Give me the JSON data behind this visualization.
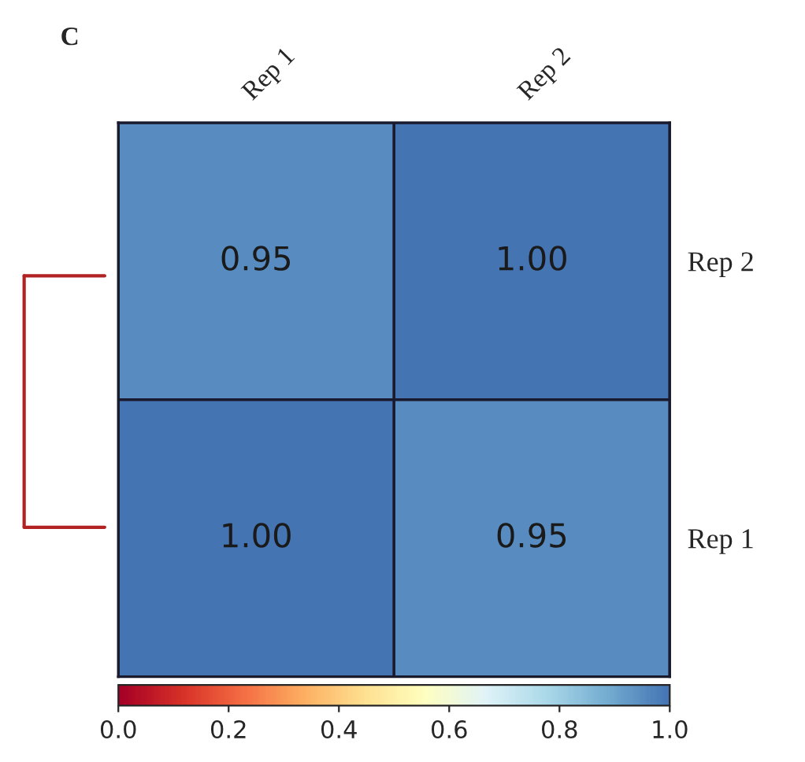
{
  "chart_data": {
    "type": "heatmap",
    "title": "C",
    "categories": [
      "Rep 1",
      "Rep 2"
    ],
    "y_categories": [
      "Rep 2",
      "Rep 1"
    ],
    "cells": [
      [
        0.95,
        1.0
      ],
      [
        1.0,
        0.95
      ]
    ],
    "cell_labels": [
      [
        "0.95",
        "1.00"
      ],
      [
        "1.00",
        "0.95"
      ]
    ],
    "clim": [
      0,
      1
    ],
    "cticks": [
      {
        "value": 0,
        "label": "0.0"
      },
      {
        "value": 0.2,
        "label": "0.2"
      },
      {
        "value": 0.4,
        "label": "0.4"
      },
      {
        "value": 0.6,
        "label": "0.6"
      },
      {
        "value": 0.8,
        "label": "0.8"
      },
      {
        "value": 1,
        "label": "1.0"
      }
    ]
  }
}
